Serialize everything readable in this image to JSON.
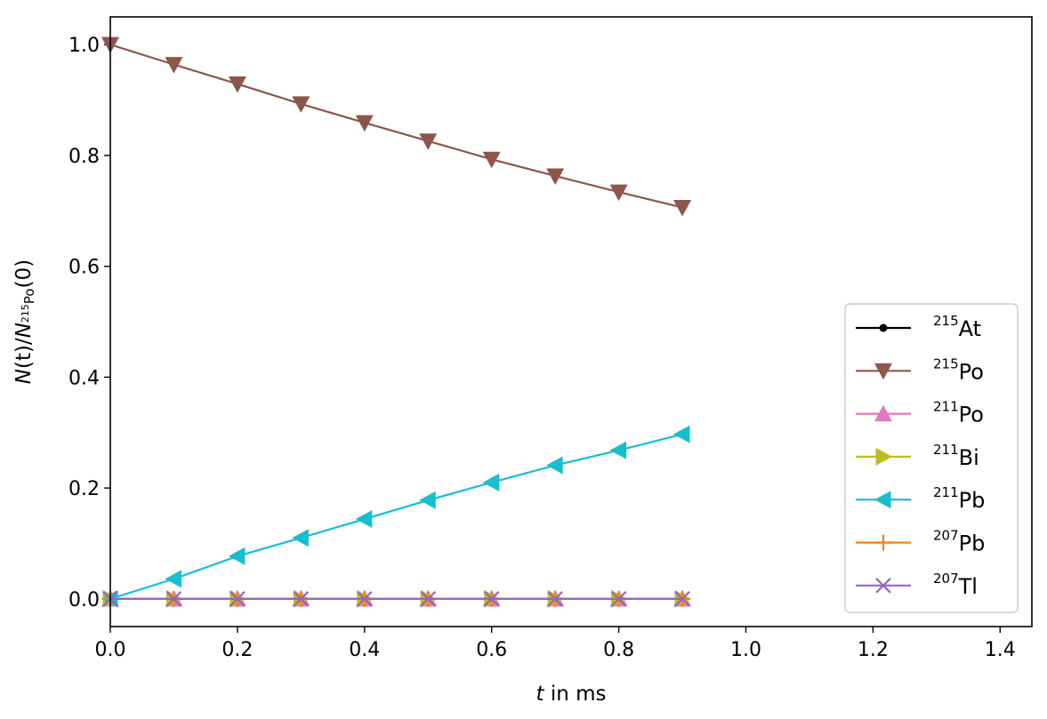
{
  "chart_data": {
    "type": "line",
    "xlabel": {
      "italic": "t",
      "rest": " in ms"
    },
    "ylabel": {
      "italic_n": "N",
      "paren_t": "(t)/",
      "italic_n2": "N",
      "sub_sup": "215",
      "sub_el": "Po",
      "paren_0": "(0)"
    },
    "xlim": [
      0.0,
      1.45
    ],
    "ylim": [
      -0.05,
      1.05
    ],
    "xticks": [
      0.0,
      0.2,
      0.4,
      0.6,
      0.8,
      1.0,
      1.2,
      1.4
    ],
    "xtick_labels": [
      "0.0",
      "0.2",
      "0.4",
      "0.6",
      "0.8",
      "1.0",
      "1.2",
      "1.4"
    ],
    "yticks": [
      0.0,
      0.2,
      0.4,
      0.6,
      0.8,
      1.0
    ],
    "ytick_labels": [
      "0.0",
      "0.2",
      "0.4",
      "0.6",
      "0.8",
      "1.0"
    ],
    "legend_position": "lower-right",
    "x": [
      0.0,
      0.1,
      0.2,
      0.3,
      0.4,
      0.5,
      0.6,
      0.7,
      0.8,
      0.9
    ],
    "series": [
      {
        "name_sup": "215",
        "name_el": "At",
        "color": "#000000",
        "marker": "dot",
        "values": [
          0,
          0,
          0,
          0,
          0,
          0,
          0,
          0,
          0,
          0
        ]
      },
      {
        "name_sup": "215",
        "name_el": "Po",
        "color": "#8c564b",
        "marker": "triangle-down",
        "values": [
          1.0,
          0.964,
          0.929,
          0.893,
          0.859,
          0.826,
          0.793,
          0.763,
          0.734,
          0.706
        ]
      },
      {
        "name_sup": "211",
        "name_el": "Po",
        "color": "#e377c2",
        "marker": "triangle-up",
        "values": [
          0,
          0,
          0,
          0,
          0,
          0,
          0,
          0,
          0,
          0
        ]
      },
      {
        "name_sup": "211",
        "name_el": "Bi",
        "color": "#bcbd22",
        "marker": "triangle-right",
        "values": [
          0,
          0,
          0,
          0,
          0,
          0,
          0,
          0,
          0,
          0
        ]
      },
      {
        "name_sup": "211",
        "name_el": "Pb",
        "color": "#17becf",
        "marker": "triangle-left",
        "values": [
          0.0,
          0.036,
          0.077,
          0.11,
          0.144,
          0.178,
          0.21,
          0.241,
          0.268,
          0.297
        ]
      },
      {
        "name_sup": "207",
        "name_el": "Pb",
        "color": "#ff7f0e",
        "marker": "plus",
        "values": [
          0,
          0,
          0,
          0,
          0,
          0,
          0,
          0,
          0,
          0
        ]
      },
      {
        "name_sup": "207",
        "name_el": "Tl",
        "color": "#9467bd",
        "marker": "x",
        "values": [
          0,
          0,
          0,
          0,
          0,
          0,
          0,
          0,
          0,
          0
        ]
      }
    ]
  }
}
